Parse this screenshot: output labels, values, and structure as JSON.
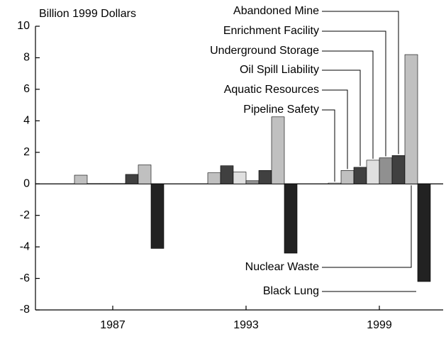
{
  "chart_data": {
    "type": "bar",
    "y_label": "Billion 1999 Dollars",
    "categories": [
      "1987",
      "1993",
      "1999"
    ],
    "series": [
      {
        "name": "Pipeline Safety",
        "color": "#ffffff",
        "values": [
          0,
          0,
          0.05
        ]
      },
      {
        "name": "Aquatic Resources",
        "color": "#c0c0c0",
        "values": [
          0.55,
          0.7,
          0.85
        ]
      },
      {
        "name": "Oil Spill Liability",
        "color": "#404040",
        "values": [
          0.02,
          1.15,
          1.05
        ]
      },
      {
        "name": "Underground Storage",
        "color": "#e0e0e0",
        "values": [
          0.02,
          0.75,
          1.5
        ]
      },
      {
        "name": "Enrichment Facility",
        "color": "#909090",
        "values": [
          0.02,
          0.2,
          1.65
        ]
      },
      {
        "name": "Abandoned Mine",
        "color": "#404040",
        "values": [
          0.6,
          0.85,
          1.8
        ]
      },
      {
        "name": "Nuclear Waste",
        "color": "#c0c0c0",
        "values": [
          1.2,
          4.25,
          8.2
        ]
      },
      {
        "name": "Black Lung",
        "color": "#222222",
        "values": [
          -4.1,
          -4.4,
          -6.2
        ]
      }
    ],
    "ylim": [
      -8,
      10
    ],
    "yticks": [
      -8,
      -6,
      -4,
      -2,
      0,
      2,
      4,
      6,
      8,
      10
    ]
  }
}
